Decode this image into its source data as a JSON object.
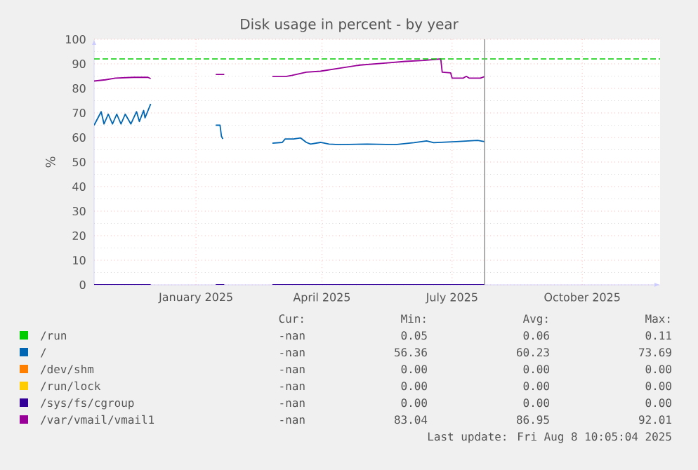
{
  "chart_data": {
    "type": "line",
    "title": "Disk usage in percent - by year",
    "ylabel": "%",
    "xlim": [
      "2024-11-05",
      "2025-12-10"
    ],
    "ylim": [
      0,
      100
    ],
    "xticks": [
      {
        "value": "2025-01-16",
        "label": "January 2025"
      },
      {
        "value": "2025-04-15",
        "label": "April 2025"
      },
      {
        "value": "2025-07-16",
        "label": "July 2025"
      },
      {
        "value": "2025-10-16",
        "label": "October 2025"
      }
    ],
    "yticks": [
      0,
      10,
      20,
      30,
      40,
      50,
      60,
      70,
      80,
      90,
      100
    ],
    "grid": true,
    "legend": "bottom",
    "ref_lines": [
      {
        "axis": "y",
        "value": 92,
        "color": "#00cc00",
        "line_style": "dashed"
      },
      {
        "axis": "x",
        "value": "2025-08-08",
        "color": "#999999",
        "line_style": "solid"
      }
    ],
    "series": [
      {
        "name": "/run",
        "color": "#00cc00"
      },
      {
        "name": "/",
        "color": "#0066b3",
        "x": [
          "2024-11-05",
          "2024-11-10",
          "2024-11-12",
          "2024-11-15",
          "2024-11-18",
          "2024-11-21",
          "2024-11-24",
          "2024-11-27",
          "2024-12-01",
          "2024-12-05",
          "2024-12-07",
          "2024-12-10",
          "2024-12-11",
          "2024-12-15",
          "2024-12-16",
          "2025-01-30",
          "2025-02-02",
          "2025-02-03",
          "2025-02-04",
          "2025-02-05",
          "2025-03-11",
          "2025-03-18",
          "2025-03-20",
          "2025-03-26",
          "2025-03-31",
          "2025-04-04",
          "2025-04-07",
          "2025-04-14",
          "2025-04-20",
          "2025-04-27",
          "2025-05-17",
          "2025-06-06",
          "2025-06-19",
          "2025-06-28",
          "2025-07-03",
          "2025-07-19",
          "2025-08-03",
          "2025-08-08"
        ],
        "values": [
          65,
          70.5,
          65.5,
          69.5,
          65.5,
          69.5,
          65.5,
          69.5,
          65.5,
          70.5,
          66.5,
          71,
          68,
          73.7,
          null,
          65,
          65,
          60.5,
          59.4,
          null,
          57.7,
          58,
          59.4,
          59.4,
          59.8,
          58,
          57.3,
          58,
          57.3,
          57.1,
          57.3,
          57.1,
          57.9,
          58.6,
          57.9,
          58.3,
          58.8,
          58.3
        ]
      },
      {
        "name": "/dev/shm",
        "color": "#ff8000"
      },
      {
        "name": "/run/lock",
        "color": "#ffcc00"
      },
      {
        "name": "/sys/fs/cgroup",
        "color": "#330099",
        "x": [
          "2024-11-05",
          "2024-12-15",
          "2024-12-16",
          "2025-01-30",
          "2025-02-05",
          "2025-02-06",
          "2025-03-11",
          "2025-08-08"
        ],
        "values": [
          0,
          0,
          null,
          0,
          0,
          null,
          0,
          0
        ]
      },
      {
        "name": "/var/vmail/vmail1",
        "color": "#990099",
        "x": [
          "2024-11-05",
          "2024-11-13",
          "2024-11-20",
          "2024-12-03",
          "2024-12-13",
          "2024-12-15",
          "2024-12-16",
          "2025-01-30",
          "2025-02-05",
          "2025-02-06",
          "2025-03-11",
          "2025-03-21",
          "2025-03-25",
          "2025-04-04",
          "2025-04-14",
          "2025-04-27",
          "2025-05-12",
          "2025-05-30",
          "2025-06-13",
          "2025-06-26",
          "2025-07-08",
          "2025-07-09",
          "2025-07-15",
          "2025-07-16",
          "2025-07-24",
          "2025-07-26",
          "2025-07-28",
          "2025-08-05",
          "2025-08-08"
        ],
        "values": [
          83,
          83.5,
          84.2,
          84.5,
          84.5,
          84,
          null,
          85.7,
          85.7,
          null,
          84.9,
          84.9,
          85.3,
          86.6,
          87,
          88.2,
          89.5,
          90.3,
          91,
          91.4,
          92,
          86.6,
          86.3,
          84.2,
          84.2,
          84.9,
          84.2,
          84.2,
          84.8
        ]
      }
    ],
    "annotations": [
      "Cur:",
      "Min:",
      "Avg:",
      "Max:",
      "-nan",
      "0.05",
      "0.06",
      "0.11",
      "-nan",
      "56.36",
      "60.23",
      "73.69",
      "-nan",
      "0.00",
      "0.00",
      "0.00",
      "-nan",
      "0.00",
      "0.00",
      "0.00",
      "-nan",
      "0.00",
      "0.00",
      "0.00",
      "-nan",
      "83.04",
      "86.95",
      "92.01",
      "Last update: Fri Aug  8 10:05:04 2025"
    ]
  }
}
